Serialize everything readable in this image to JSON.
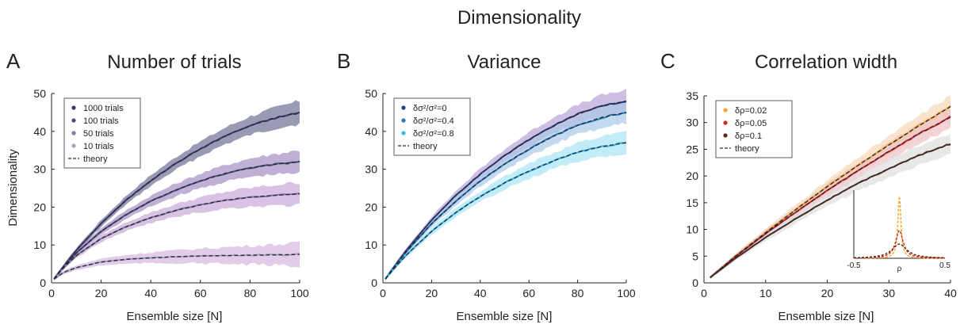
{
  "figure": {
    "suptitle": "Dimensionality"
  },
  "chart_data": [
    {
      "type": "line",
      "letter": "A",
      "title": "Number of trials",
      "xlabel": "Ensemble size [N]",
      "ylabel": "Dimensionality",
      "xlim": [
        0,
        100
      ],
      "ylim": [
        0,
        50
      ],
      "xticks": [
        0,
        20,
        40,
        60,
        80,
        100
      ],
      "yticks": [
        0,
        10,
        20,
        30,
        40,
        50
      ],
      "legend_position": "top-left",
      "shaded_band": true,
      "x": [
        1,
        5,
        10,
        20,
        30,
        40,
        50,
        60,
        70,
        80,
        90,
        100
      ],
      "series": [
        {
          "name": "1000 trials",
          "color": "#3a3a6a",
          "band_color": "#6f6f96",
          "values": [
            1,
            4.5,
            8.6,
            15.7,
            21.8,
            27.0,
            31.5,
            35.4,
            38.8,
            41.5,
            43.5,
            45.0
          ]
        },
        {
          "name": "100 trials",
          "color": "#4d4d7a",
          "band_color": "#a78ec4",
          "values": [
            1,
            4.3,
            7.9,
            13.6,
            18.0,
            21.6,
            24.5,
            26.9,
            28.9,
            30.4,
            31.3,
            32.0
          ]
        },
        {
          "name": "50 trials",
          "color": "#7d7d9d",
          "band_color": "#c9a8d8",
          "values": [
            1,
            4.1,
            7.2,
            11.7,
            14.8,
            17.2,
            19.1,
            20.6,
            21.8,
            22.6,
            23.1,
            23.5
          ]
        },
        {
          "name": "10 trials",
          "color": "#a7a7c2",
          "band_color": "#d6b6e0",
          "values": [
            1,
            2.8,
            4.0,
            5.5,
            6.2,
            6.6,
            6.9,
            7.1,
            7.2,
            7.3,
            7.4,
            7.5
          ]
        }
      ],
      "theory": {
        "name": "theory"
      }
    },
    {
      "type": "line",
      "letter": "B",
      "title": "Variance",
      "xlabel": "Ensemble size [N]",
      "ylabel": "",
      "xlim": [
        0,
        100
      ],
      "ylim": [
        0,
        50
      ],
      "xticks": [
        0,
        20,
        40,
        60,
        80,
        100
      ],
      "yticks": [
        0,
        10,
        20,
        30,
        40,
        50
      ],
      "legend_position": "top-left",
      "shaded_band": true,
      "x": [
        1,
        5,
        10,
        20,
        30,
        40,
        50,
        60,
        70,
        80,
        90,
        100
      ],
      "series": [
        {
          "name": "δσ²/σ²=0",
          "color": "#1f3f7a",
          "band_color": "#b9a3d6",
          "values": [
            1,
            4.6,
            8.9,
            16.6,
            23.1,
            28.7,
            33.6,
            37.8,
            41.5,
            44.5,
            46.8,
            48.0
          ]
        },
        {
          "name": "δσ²/σ²=0.4",
          "color": "#2a7ab8",
          "band_color": "#a9c9e8",
          "values": [
            1,
            4.5,
            8.5,
            15.6,
            21.6,
            26.9,
            31.4,
            35.3,
            38.7,
            41.6,
            43.7,
            45.0
          ]
        },
        {
          "name": "δσ²/σ²=0.8",
          "color": "#35b8e0",
          "band_color": "#a8e4f4",
          "values": [
            1,
            4.1,
            7.6,
            13.6,
            18.6,
            22.8,
            26.4,
            29.5,
            32.2,
            34.5,
            36.0,
            37.0
          ]
        }
      ],
      "theory": {
        "name": "theory"
      }
    },
    {
      "type": "line",
      "letter": "C",
      "title": "Correlation width",
      "xlabel": "Ensemble size [N]",
      "ylabel": "",
      "xlim": [
        0,
        40
      ],
      "ylim": [
        0,
        35
      ],
      "xticks": [
        0,
        10,
        20,
        30,
        40
      ],
      "yticks": [
        0,
        5,
        10,
        15,
        20,
        25,
        30,
        35
      ],
      "legend_position": "top-left",
      "shaded_band": true,
      "x": [
        1,
        5,
        10,
        15,
        20,
        25,
        30,
        35,
        40
      ],
      "series": [
        {
          "name": "δρ=0.02",
          "color": "#f5a623",
          "band_color": "#f6d7b8",
          "values": [
            1,
            4.9,
            9.4,
            13.8,
            18.0,
            22.0,
            25.8,
            29.5,
            33.0
          ]
        },
        {
          "name": "δρ=0.05",
          "color": "#d7261e",
          "band_color": "#eec0c4",
          "values": [
            1,
            4.8,
            9.2,
            13.3,
            17.3,
            21.0,
            24.6,
            28.0,
            31.0
          ]
        },
        {
          "name": "δρ=0.1",
          "color": "#5a2a14",
          "band_color": "#dedede",
          "values": [
            1,
            4.5,
            8.5,
            12.1,
            15.5,
            18.6,
            21.4,
            23.9,
            26.0
          ]
        }
      ],
      "theory": {
        "name": "theory"
      },
      "inset": {
        "xlabel": "ρ",
        "xlim": [
          -0.5,
          0.5
        ],
        "xticks": [
          -0.5,
          0.5
        ],
        "curves": [
          {
            "width": 0.02,
            "peak": 1.0,
            "color": "#f5a623"
          },
          {
            "width": 0.05,
            "peak": 0.45,
            "color": "#d7261e"
          },
          {
            "width": 0.1,
            "peak": 0.23,
            "color": "#5a2a14"
          }
        ]
      }
    }
  ]
}
